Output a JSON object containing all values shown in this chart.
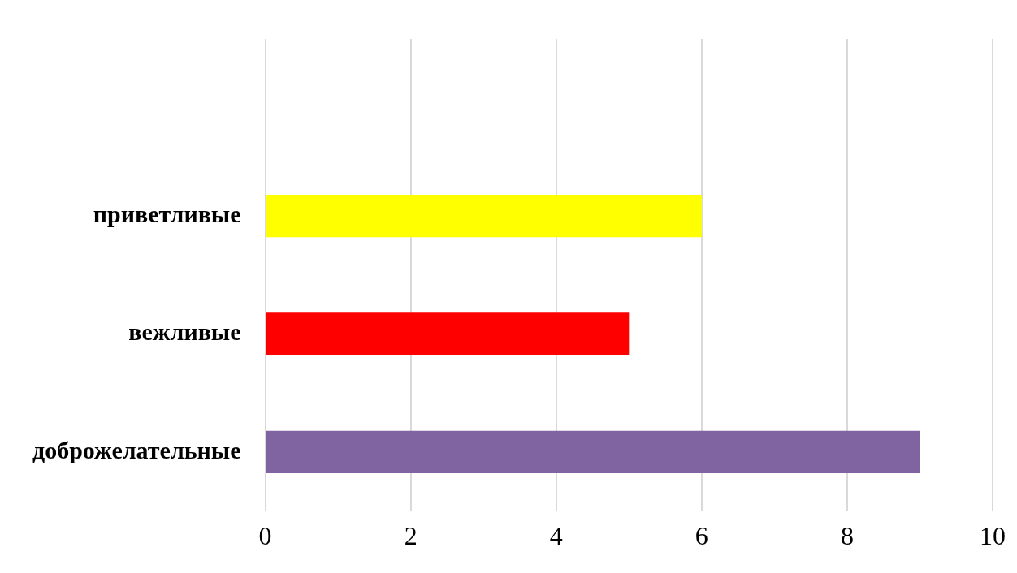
{
  "chart_data": {
    "type": "bar",
    "orientation": "horizontal",
    "categories": [
      null,
      "приветливые",
      "вежливые",
      "доброжелательные"
    ],
    "values": [
      null,
      6,
      5,
      9
    ],
    "colors": [
      "#8064a2",
      "#ffff00",
      "#ff0000",
      "#8064a2"
    ],
    "xlim": [
      0,
      10
    ],
    "xticks": [
      0,
      2,
      4,
      6,
      8,
      10
    ],
    "grid": "x",
    "legend": false
  }
}
